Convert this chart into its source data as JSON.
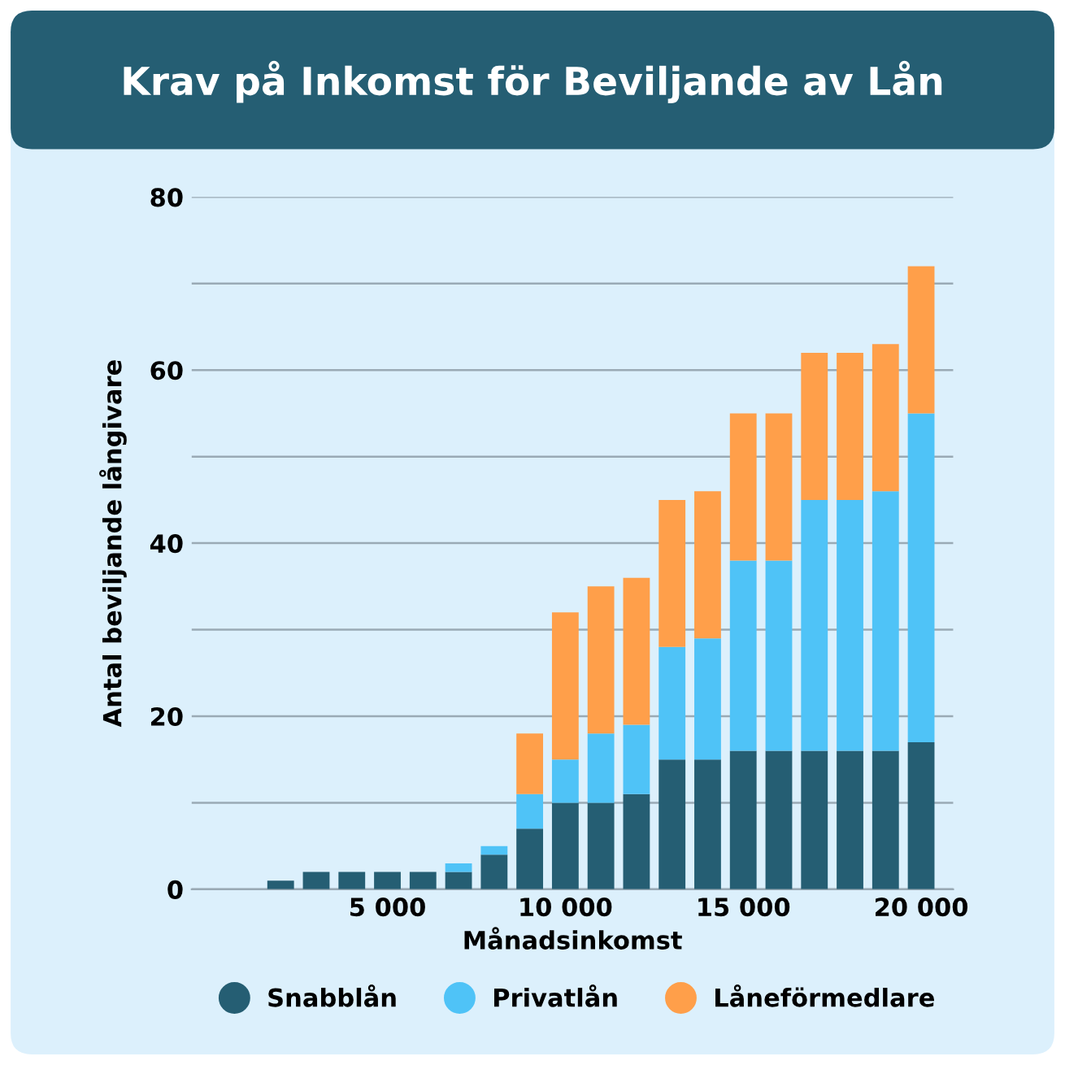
{
  "chart_data": {
    "type": "bar",
    "title": "Krav på Inkomst för Beviljande av Lån",
    "xlabel": "Månadsinkomst",
    "ylabel": "Antal beviljande långivare",
    "x": [
      2000,
      3000,
      4000,
      5000,
      6000,
      7000,
      8000,
      9000,
      10000,
      11000,
      12000,
      13000,
      14000,
      15000,
      16000,
      17000,
      18000,
      19000,
      20000
    ],
    "series": [
      {
        "name": "Snabblån",
        "color": "#255e73",
        "values": [
          1,
          2,
          2,
          2,
          2,
          2,
          4,
          7,
          10,
          10,
          11,
          15,
          15,
          16,
          16,
          16,
          16,
          16,
          17
        ]
      },
      {
        "name": "Privatlån",
        "color": "#4fc3f7",
        "values": [
          0,
          0,
          0,
          0,
          0,
          1,
          1,
          4,
          5,
          8,
          8,
          13,
          14,
          22,
          22,
          29,
          29,
          30,
          38
        ]
      },
      {
        "name": "Låneförmedlare",
        "color": "#ff9f4a",
        "values": [
          0,
          0,
          0,
          0,
          0,
          0,
          0,
          7,
          17,
          17,
          17,
          17,
          17,
          17,
          17,
          17,
          17,
          17,
          17
        ]
      }
    ],
    "stacked": true,
    "xlim": [
      -500,
      20900
    ],
    "ylim": [
      0,
      80
    ],
    "xticks": [
      {
        "value": 5000,
        "label": "5 000"
      },
      {
        "value": 10000,
        "label": "10 000"
      },
      {
        "value": 15000,
        "label": "15 000"
      },
      {
        "value": 20000,
        "label": "20 000"
      }
    ],
    "yticks": [
      0,
      {
        "value": 10,
        "label": null
      },
      20,
      {
        "value": 30,
        "label": null
      },
      40,
      {
        "value": 50,
        "label": null
      },
      60,
      {
        "value": 70,
        "label": null
      },
      80
    ],
    "grid": "y",
    "legend": "bottom"
  }
}
